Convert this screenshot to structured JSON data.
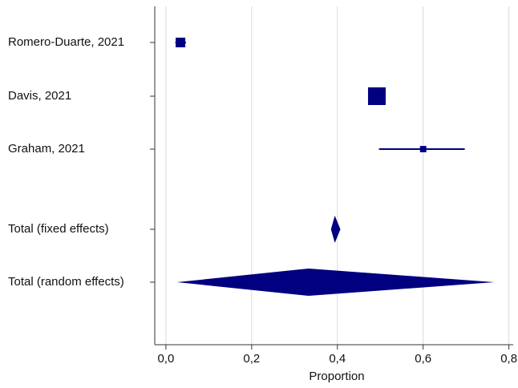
{
  "chart_data": {
    "type": "forest",
    "x_label": "Proportion",
    "color": "#000080",
    "grid": true,
    "xlim": [
      -0.026,
      0.81
    ],
    "xticks": [
      {
        "value": 0,
        "label": "0,0"
      },
      {
        "value": 0.2,
        "label": "0,2"
      },
      {
        "value": 0.4,
        "label": "0,4"
      },
      {
        "value": 0.6,
        "label": "0,6"
      },
      {
        "value": 0.8,
        "label": "0,8"
      }
    ],
    "studies": [
      {
        "name": "Romero-Duarte, 2021",
        "estimate": 0.034,
        "lower": 0.022,
        "upper": 0.047,
        "weight": 21
      },
      {
        "name": "Davis, 2021",
        "estimate": 0.492,
        "lower": 0.475,
        "upper": 0.51,
        "weight": 70
      },
      {
        "name": "Graham, 2021",
        "estimate": 0.6,
        "lower": 0.497,
        "upper": 0.697,
        "weight": 9
      }
    ],
    "summaries": [
      {
        "name": "Total (fixed effects)",
        "estimate": 0.394,
        "lower": 0.385,
        "upper": 0.407
      },
      {
        "name": "Total (random effects)",
        "estimate": 0.333,
        "lower": 0.026,
        "upper": 0.766
      }
    ]
  }
}
